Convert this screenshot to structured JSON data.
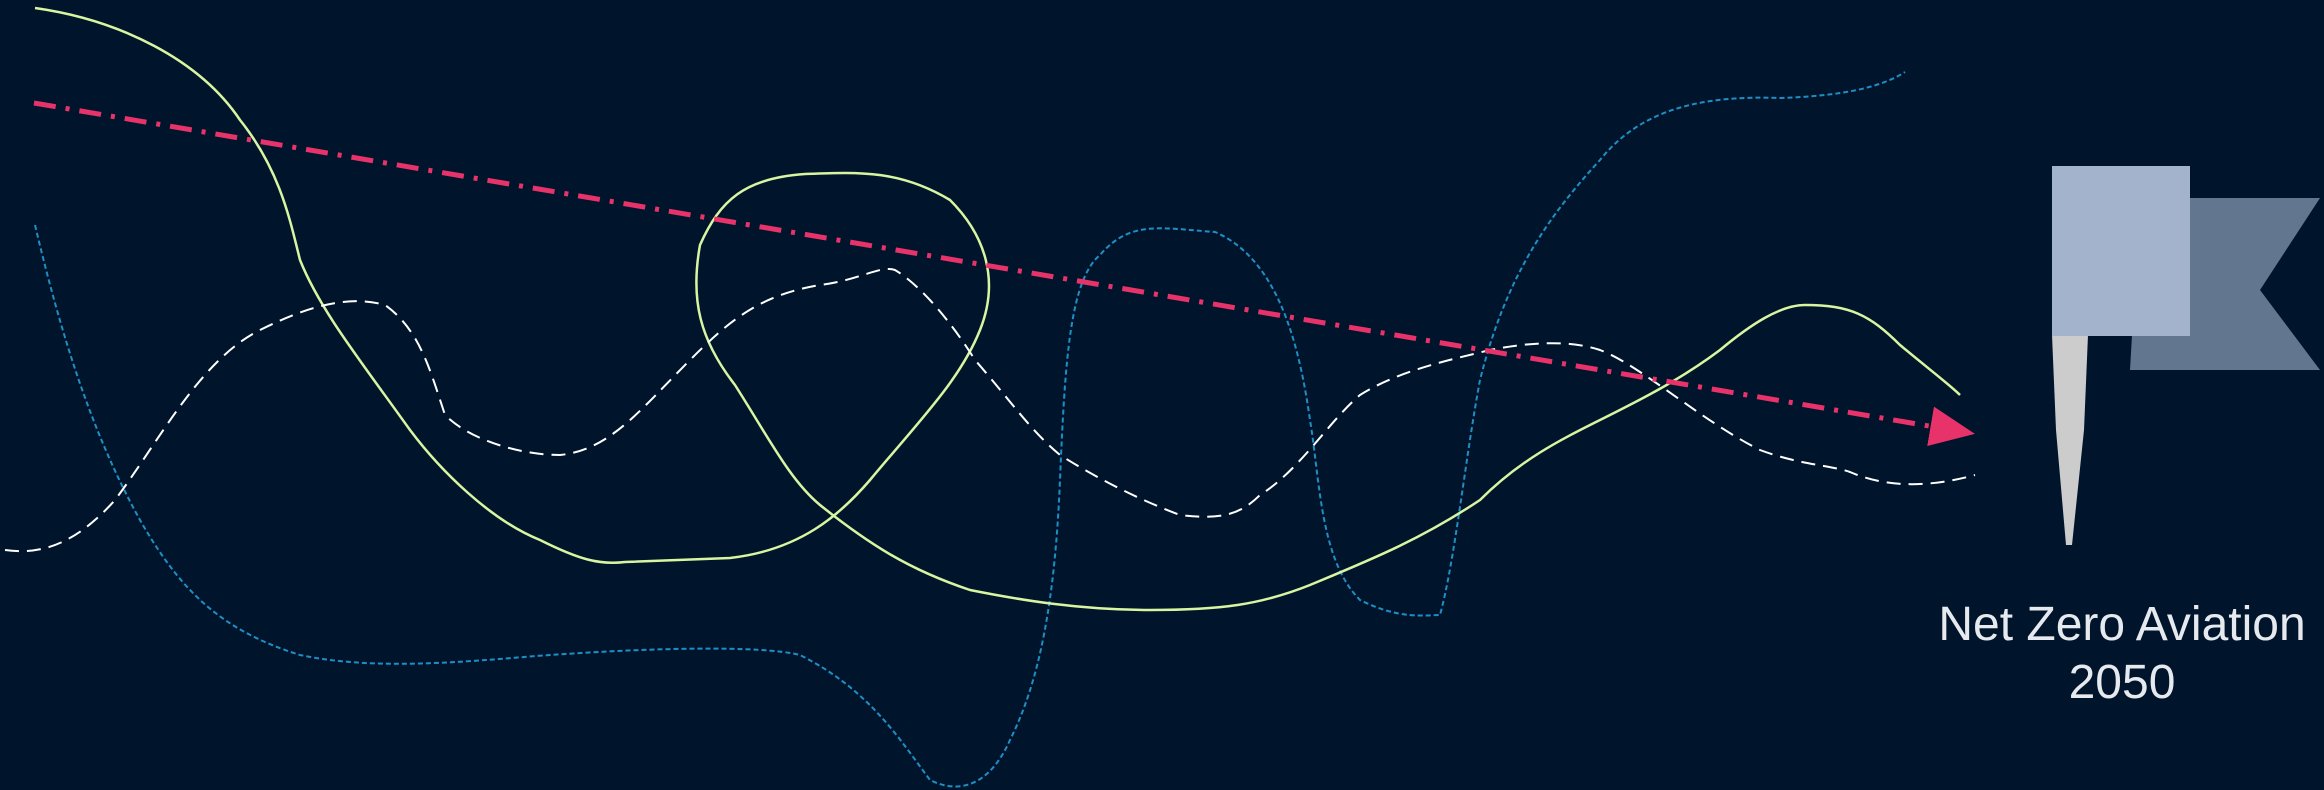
{
  "caption": {
    "line1": "Net Zero Aviation",
    "line2": "2050"
  },
  "colors": {
    "background": "#00152C",
    "trend_arrow": "#E8336A",
    "white_dashed": "#FFFFFF",
    "green_solid": "#D8F5A2",
    "blue_dotted": "#1E8FC4",
    "flag_light": "#A3B3CC",
    "flag_dark": "#627690",
    "flag_pole": "#CCCCCC",
    "caption_text": "#E6E9EE"
  },
  "icons": {
    "goal": "flag-icon"
  }
}
